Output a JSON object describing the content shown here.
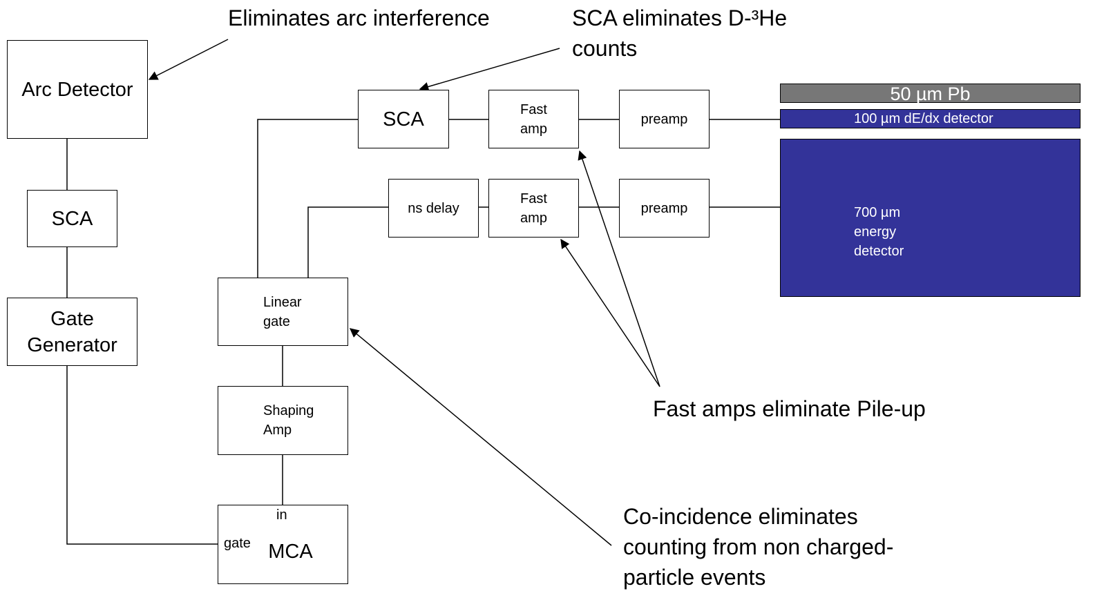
{
  "annotations": [
    "Eliminates arc interference",
    "SCA eliminates D-³He counts",
    "Fast amps eliminate Pile-up",
    "Co-incidence eliminates counting from non charged-particle events"
  ],
  "nodes": [
    {
      "label": "Arc Detector"
    },
    {
      "label": "SCA"
    },
    {
      "label": "Gate Generator"
    },
    {
      "label": "SCA"
    },
    {
      "label": "Fast amp"
    },
    {
      "label": "preamp"
    },
    {
      "label": "ns delay"
    },
    {
      "label": "Fast amp"
    },
    {
      "label": "preamp"
    },
    {
      "label": "Linear gate"
    },
    {
      "label": "Shaping Amp"
    },
    {
      "label": "MCA"
    }
  ],
  "mca_inputs": [
    "in",
    "gate"
  ],
  "detectors": [
    "50 µm Pb",
    "100 µm dE/dx detector",
    "700 µm energy detector"
  ]
}
